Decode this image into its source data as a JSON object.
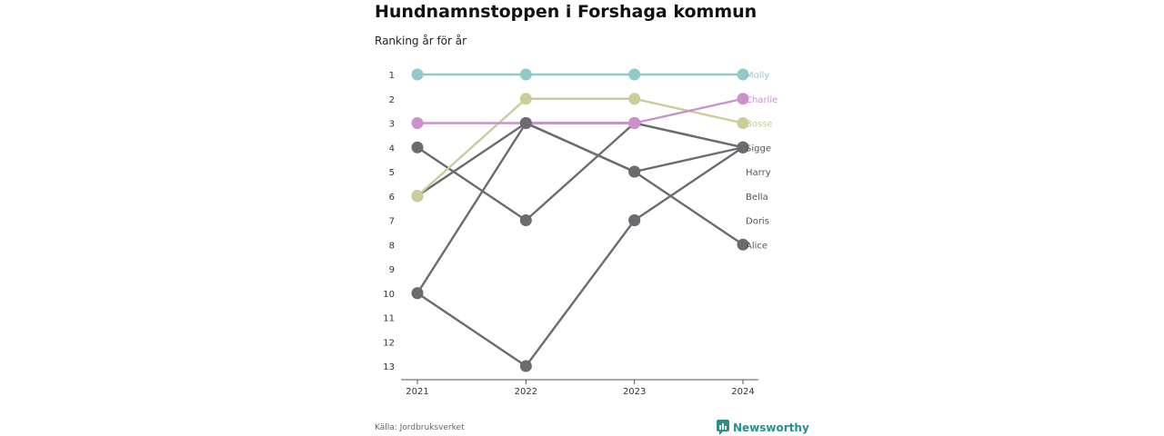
{
  "title": "Hundnamnstoppen i Forshaga kommun",
  "subtitle": "Ranking år för år",
  "source": "Källa: Jordbruksverket",
  "brand": {
    "name": "Newsworthy",
    "icon": "newsworthy-logo-icon",
    "color": "#2a8f8a"
  },
  "chart_data": {
    "type": "line",
    "x": [
      "2021",
      "2022",
      "2023",
      "2024"
    ],
    "y_ticks": [
      1,
      2,
      3,
      4,
      5,
      6,
      7,
      8,
      9,
      10,
      11,
      12,
      13
    ],
    "y_reversed": true,
    "ylim": [
      1,
      13
    ],
    "grid": false,
    "legend": "end-labels",
    "series": [
      {
        "name": "Molly",
        "color": "#92c9c9",
        "values": [
          1,
          1,
          1,
          1
        ]
      },
      {
        "name": "Charlie",
        "color": "#cc91cc",
        "values": [
          3,
          3,
          3,
          2
        ]
      },
      {
        "name": "Bosse",
        "color": "#cccc99",
        "values": [
          6,
          2,
          2,
          3
        ]
      },
      {
        "name": "Sigge",
        "color": "#6b6b70",
        "values": [
          6,
          3,
          3,
          4
        ]
      },
      {
        "name": "Harry",
        "color": "#6b6b70",
        "values": [
          4,
          7,
          3,
          4
        ]
      },
      {
        "name": "Bella",
        "color": "#6b6b70",
        "values": [
          10,
          3,
          5,
          4
        ]
      },
      {
        "name": "Doris",
        "color": "#6b6b70",
        "values": [
          10,
          13,
          7,
          4
        ]
      },
      {
        "name": "Alice",
        "color": "#6b6b70",
        "values": [
          null,
          3,
          5,
          8
        ]
      }
    ],
    "extra_points": [
      {
        "x": "2022",
        "y": 3
      },
      {
        "x": "2023",
        "y": 7
      }
    ]
  }
}
